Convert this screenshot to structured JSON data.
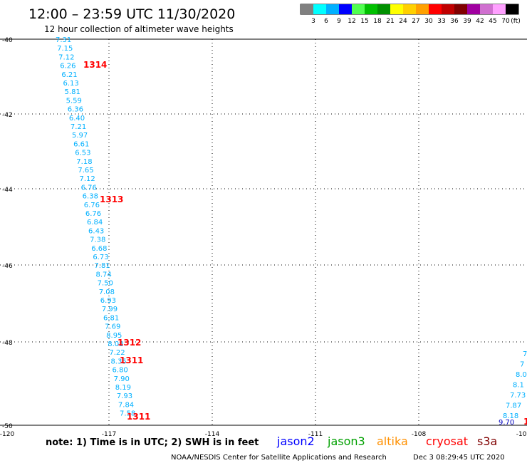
{
  "header": {
    "title": "12:00 – 23:59 UTC 11/30/2020",
    "subtitle": "12 hour collection of altimeter wave heights"
  },
  "legend": {
    "colors": [
      "#808080",
      "#00ffff",
      "#00b0ff",
      "#0000ff",
      "#50ff50",
      "#00c000",
      "#009000",
      "#ffff00",
      "#ffd000",
      "#ffa000",
      "#ff0000",
      "#c00000",
      "#800000",
      "#a000a0",
      "#d070d0",
      "#ffa0ff",
      "#000000"
    ],
    "labels": [
      "3",
      "6",
      "9",
      "12",
      "15",
      "18",
      "21",
      "24",
      "27",
      "30",
      "33",
      "36",
      "39",
      "42",
      "45",
      "70"
    ],
    "unit": "(ft)"
  },
  "axes": {
    "lat_labels": [
      "-40",
      "-42",
      "-44",
      "-46",
      "-48",
      "-50"
    ],
    "lon_labels": [
      "-120",
      "-117",
      "-114",
      "-111",
      "-108",
      "-105"
    ]
  },
  "track1": {
    "color": "#00b0ff",
    "values": [
      "7.31",
      "7.15",
      "7.12",
      "6.26",
      "6.21",
      "6.13",
      "5.81",
      "5.59",
      "6.36",
      "6.40",
      "7.21",
      "5.97",
      "6.61",
      "6.53",
      "7.18",
      "7.65",
      "7.12",
      "6.76",
      "6.38",
      "6.76",
      "6.76",
      "6.84",
      "6.43",
      "7.38",
      "6.68",
      "6.73",
      "7.81",
      "8.74",
      "7.50",
      "7.08",
      "6.93",
      "7.99",
      "6.81",
      "7.69",
      "8.95",
      "8.08",
      "7.22",
      "8.35",
      "6.80",
      "7.90",
      "8.19",
      "7.93",
      "7.84",
      "7.58"
    ]
  },
  "track2": {
    "color": "#00b0ff",
    "values": [
      "7",
      "7",
      "8.0",
      "8.1",
      "7.73",
      "7.87",
      "8.18"
    ]
  },
  "track2_dark": {
    "value": "9.70",
    "color": "#0000c0"
  },
  "orbits": [
    "1314",
    "1313",
    "1312",
    "1311",
    "1311",
    "1"
  ],
  "footer": {
    "note": "note:  1) Time is in UTC;  2) SWH is in feet",
    "satellites": [
      {
        "name": "jason2",
        "color": "#0000ff"
      },
      {
        "name": "jason3",
        "color": "#00a000"
      },
      {
        "name": "altika",
        "color": "#ff9000"
      },
      {
        "name": "cryosat",
        "color": "#ff0000"
      },
      {
        "name": "s3a",
        "color": "#800000"
      }
    ],
    "credit": "NOAA/NESDIS Center for Satellite Applications and Research",
    "timestamp": "Dec  3 08:29:45 UTC 2020"
  }
}
